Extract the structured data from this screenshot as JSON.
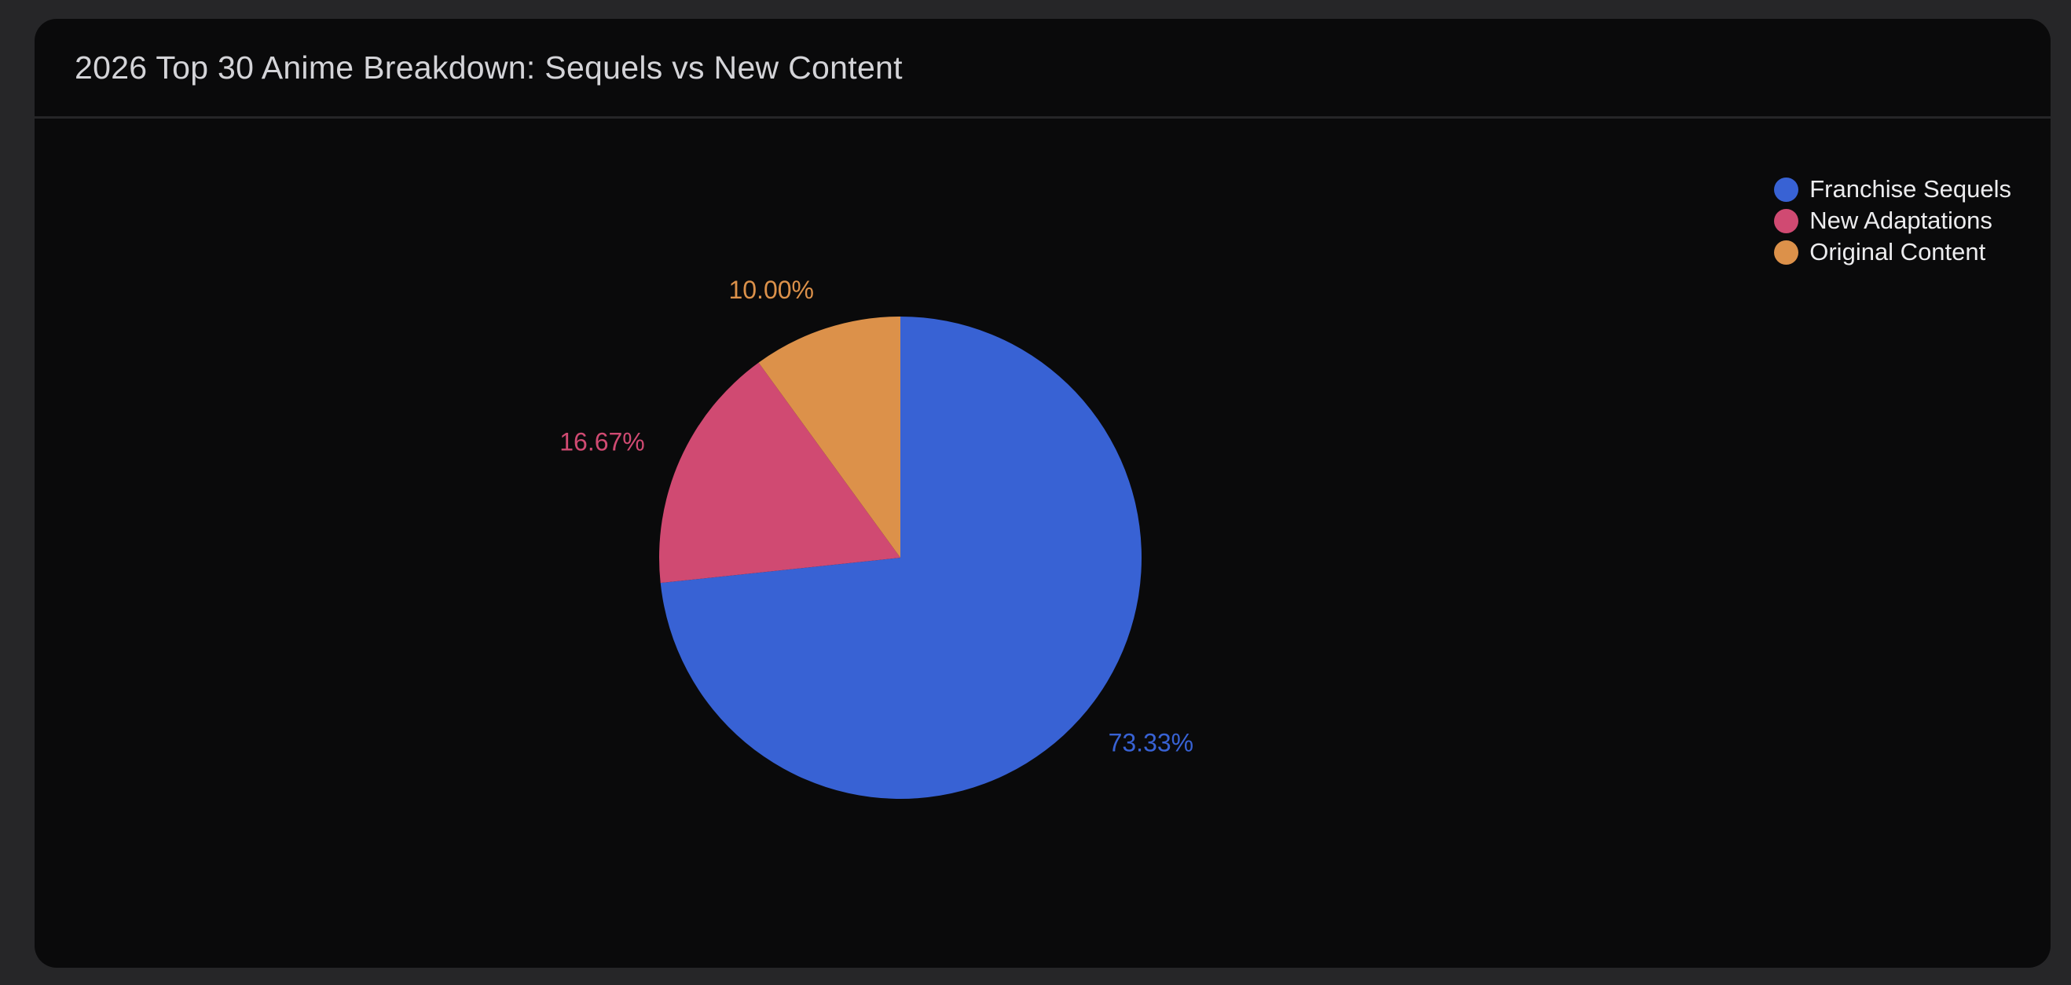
{
  "chart_data": {
    "type": "pie",
    "title": "2026 Top 30 Anime Breakdown: Sequels vs New Content",
    "legend_position": "top-right",
    "slices": [
      {
        "name": "Franchise Sequels",
        "value": 73.33,
        "label": "73.33%",
        "color": "#3862d4"
      },
      {
        "name": "New Adaptations",
        "value": 16.67,
        "label": "16.67%",
        "color": "#d04a72"
      },
      {
        "name": "Original Content",
        "value": 10.0,
        "label": "10.00%",
        "color": "#dc914a"
      }
    ]
  }
}
